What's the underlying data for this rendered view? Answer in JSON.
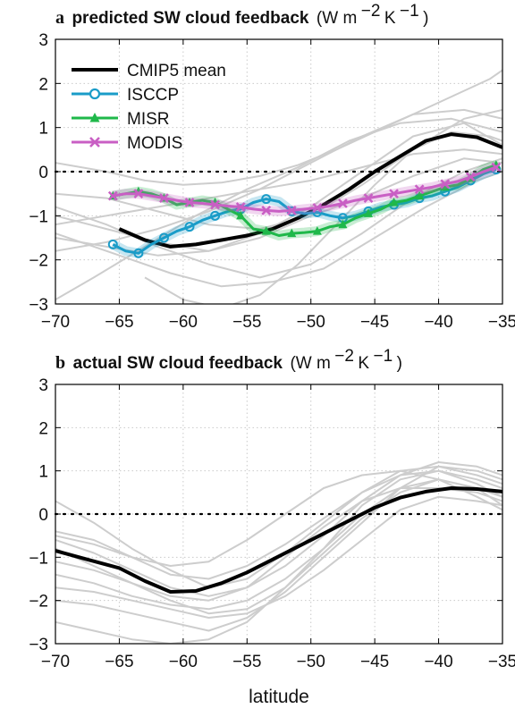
{
  "figure": {
    "xlabel": "latitude"
  },
  "chart_data": [
    {
      "type": "line",
      "panel_letter": "a",
      "title_main": "predicted SW cloud feedback",
      "title_units": {
        "base": "(W m",
        "exp1": "−2",
        "mid": " K",
        "exp2": "−1",
        "end": ")"
      },
      "xlim": [
        -70,
        -35
      ],
      "ylim": [
        -3,
        3
      ],
      "x_ticks": [
        -70,
        -65,
        -60,
        -55,
        -50,
        -45,
        -40,
        -35
      ],
      "y_ticks": [
        -3,
        -2,
        -1,
        0,
        1,
        2,
        3
      ],
      "grid": true,
      "zero_line": "dotted",
      "legend": {
        "position": "top-left"
      },
      "colors": {
        "cmip5": "#000000",
        "isccp": "#1a9cc8",
        "misr": "#1fb84a",
        "modis": "#c95fc4",
        "models": "#c8c8c8"
      },
      "series": [
        {
          "name": "CMIP5 mean",
          "color": "#000000",
          "marker": "none",
          "x": [
            -65,
            -63,
            -61,
            -59,
            -57,
            -55,
            -53,
            -51,
            -49,
            -47,
            -45,
            -43,
            -41,
            -39,
            -37,
            -35
          ],
          "y": [
            -1.3,
            -1.55,
            -1.7,
            -1.65,
            -1.55,
            -1.45,
            -1.3,
            -1.05,
            -0.75,
            -0.4,
            0.0,
            0.35,
            0.7,
            0.85,
            0.78,
            0.55
          ]
        },
        {
          "name": "ISCCP",
          "color": "#1a9cc8",
          "marker": "circle",
          "x": [
            -65.5,
            -64.5,
            -63.5,
            -62.5,
            -61.5,
            -60.5,
            -59.5,
            -58.5,
            -57.5,
            -56.5,
            -55.5,
            -54.5,
            -53.5,
            -52.5,
            -51.5,
            -50.5,
            -49.5,
            -48.5,
            -47.5,
            -46.5,
            -45.5,
            -44.5,
            -43.5,
            -42.5,
            -41.5,
            -40.5,
            -39.5,
            -38.5,
            -37.5,
            -36.5,
            -35.5
          ],
          "y": [
            -1.65,
            -1.8,
            -1.85,
            -1.65,
            -1.5,
            -1.35,
            -1.25,
            -1.1,
            -1.0,
            -0.9,
            -0.85,
            -0.7,
            -0.62,
            -0.68,
            -0.9,
            -0.95,
            -0.92,
            -1.0,
            -1.05,
            -1.0,
            -0.9,
            -0.8,
            -0.75,
            -0.7,
            -0.6,
            -0.55,
            -0.45,
            -0.35,
            -0.2,
            -0.05,
            0.05
          ]
        },
        {
          "name": "MISR",
          "color": "#1fb84a",
          "marker": "triangle",
          "x": [
            -65.5,
            -64.5,
            -63.5,
            -62.5,
            -61.5,
            -60.5,
            -59.5,
            -58.5,
            -57.5,
            -56.5,
            -55.5,
            -54.5,
            -53.5,
            -52.5,
            -51.5,
            -50.5,
            -49.5,
            -48.5,
            -47.5,
            -46.5,
            -45.5,
            -44.5,
            -43.5,
            -42.5,
            -41.5,
            -40.5,
            -39.5,
            -38.5,
            -37.5,
            -36.5,
            -35.5
          ],
          "y": [
            -0.55,
            -0.5,
            -0.45,
            -0.5,
            -0.6,
            -0.75,
            -0.7,
            -0.65,
            -0.7,
            -0.85,
            -1.0,
            -1.3,
            -1.35,
            -1.45,
            -1.4,
            -1.38,
            -1.35,
            -1.25,
            -1.2,
            -1.05,
            -0.95,
            -0.85,
            -0.7,
            -0.65,
            -0.55,
            -0.45,
            -0.35,
            -0.3,
            -0.15,
            0.05,
            0.15
          ]
        },
        {
          "name": "MODIS",
          "color": "#c95fc4",
          "marker": "x",
          "x": [
            -65.5,
            -64.5,
            -63.5,
            -62.5,
            -61.5,
            -60.5,
            -59.5,
            -58.5,
            -57.5,
            -56.5,
            -55.5,
            -54.5,
            -53.5,
            -52.5,
            -51.5,
            -50.5,
            -49.5,
            -48.5,
            -47.5,
            -46.5,
            -45.5,
            -44.5,
            -43.5,
            -42.5,
            -41.5,
            -40.5,
            -39.5,
            -38.5,
            -37.5,
            -36.5,
            -35.5
          ],
          "y": [
            -0.55,
            -0.5,
            -0.5,
            -0.55,
            -0.6,
            -0.65,
            -0.7,
            -0.72,
            -0.75,
            -0.78,
            -0.8,
            -0.85,
            -0.88,
            -0.9,
            -0.88,
            -0.85,
            -0.82,
            -0.78,
            -0.72,
            -0.65,
            -0.6,
            -0.55,
            -0.5,
            -0.45,
            -0.4,
            -0.35,
            -0.28,
            -0.22,
            -0.12,
            0.0,
            0.1
          ]
        }
      ],
      "model_lines": [
        {
          "x": [
            -70,
            -66,
            -63,
            -60,
            -57,
            -54,
            -51,
            -48,
            -45,
            -42,
            -39,
            -36,
            -35
          ],
          "y": [
            0.2,
            0.0,
            -0.2,
            -0.3,
            -0.25,
            -0.1,
            0.15,
            0.5,
            0.9,
            1.3,
            1.7,
            2.1,
            2.3
          ]
        },
        {
          "x": [
            -70,
            -66,
            -62,
            -58,
            -54,
            -50,
            -46,
            -42,
            -38,
            -35
          ],
          "y": [
            -1.0,
            -1.3,
            -1.6,
            -1.8,
            -1.5,
            -1.0,
            -0.3,
            0.5,
            1.2,
            1.4
          ]
        },
        {
          "x": [
            -70,
            -66,
            -62,
            -58,
            -54,
            -50,
            -46,
            -42,
            -38,
            -35
          ],
          "y": [
            -1.8,
            -1.6,
            -1.3,
            -0.9,
            -0.4,
            0.2,
            0.8,
            1.3,
            1.4,
            1.2
          ]
        },
        {
          "x": [
            -70,
            -67,
            -63,
            -59,
            -55,
            -51,
            -47,
            -43,
            -39,
            -35
          ],
          "y": [
            -2.9,
            -2.4,
            -1.7,
            -1.0,
            -0.4,
            0.1,
            0.7,
            1.1,
            1.2,
            0.9
          ]
        },
        {
          "x": [
            -70,
            -66,
            -62,
            -58,
            -54,
            -50,
            -46,
            -42,
            -38,
            -35
          ],
          "y": [
            -0.8,
            -1.2,
            -1.7,
            -2.1,
            -2.4,
            -2.1,
            -1.4,
            -0.6,
            0.0,
            0.3
          ]
        },
        {
          "x": [
            -70,
            -65,
            -61,
            -57,
            -53,
            -49,
            -45,
            -41,
            -37,
            -35
          ],
          "y": [
            -1.4,
            -1.9,
            -2.3,
            -2.6,
            -2.5,
            -2.2,
            -1.5,
            -0.8,
            -0.2,
            0.0
          ]
        },
        {
          "x": [
            -70,
            -66,
            -62,
            -58,
            -54,
            -50,
            -46,
            -42,
            -38,
            -35
          ],
          "y": [
            -1.2,
            -1.0,
            -0.8,
            -0.6,
            -0.4,
            -0.2,
            0.1,
            0.4,
            0.5,
            0.4
          ]
        },
        {
          "x": [
            -70,
            -66,
            -62,
            -58,
            -54,
            -50,
            -46,
            -42,
            -38,
            -35
          ],
          "y": [
            -0.5,
            -0.6,
            -0.9,
            -1.2,
            -1.3,
            -1.0,
            -0.6,
            -0.1,
            0.3,
            0.2
          ]
        },
        {
          "x": [
            -63,
            -60,
            -57,
            -54,
            -51,
            -48,
            -45,
            -42,
            -39,
            -36,
            -35
          ],
          "y": [
            -2.4,
            -2.9,
            -3.1,
            -2.8,
            -2.1,
            -1.2,
            -0.3,
            0.5,
            0.9,
            0.8,
            0.7
          ]
        },
        {
          "x": [
            -70,
            -66,
            -62,
            -58,
            -54,
            -50,
            -46,
            -42,
            -38,
            -35
          ],
          "y": [
            -1.5,
            -1.7,
            -1.9,
            -1.8,
            -1.4,
            -0.8,
            0.0,
            0.8,
            1.1,
            0.6
          ]
        }
      ]
    },
    {
      "type": "line",
      "panel_letter": "b",
      "title_main": "actual SW cloud feedback",
      "title_units": {
        "base": "(W m",
        "exp1": "−2",
        "mid": " K",
        "exp2": "−1",
        "end": ")"
      },
      "xlim": [
        -70,
        -35
      ],
      "ylim": [
        -3,
        3
      ],
      "x_ticks": [
        -70,
        -65,
        -60,
        -55,
        -50,
        -45,
        -40,
        -35
      ],
      "y_ticks": [
        -3,
        -2,
        -1,
        0,
        1,
        2,
        3
      ],
      "grid": true,
      "zero_line": "dotted",
      "colors": {
        "mean": "#000000",
        "models": "#c8c8c8"
      },
      "series": [
        {
          "name": "CMIP5 mean",
          "color": "#000000",
          "marker": "none",
          "x": [
            -70,
            -67.5,
            -65,
            -63,
            -61,
            -59,
            -57,
            -55,
            -53,
            -51,
            -49,
            -47,
            -45,
            -43,
            -41,
            -39,
            -37,
            -35
          ],
          "y": [
            -0.85,
            -1.05,
            -1.25,
            -1.55,
            -1.8,
            -1.78,
            -1.6,
            -1.35,
            -1.05,
            -0.75,
            -0.45,
            -0.15,
            0.15,
            0.38,
            0.52,
            0.6,
            0.58,
            0.52
          ]
        }
      ],
      "model_lines": [
        {
          "x": [
            -70,
            -67,
            -64,
            -61,
            -58,
            -55,
            -52,
            -49,
            -46,
            -43,
            -40,
            -37,
            -35
          ],
          "y": [
            -0.4,
            -0.6,
            -1.0,
            -1.4,
            -1.5,
            -1.2,
            -0.7,
            -0.1,
            0.5,
            0.9,
            1.0,
            0.8,
            0.6
          ]
        },
        {
          "x": [
            -70,
            -67,
            -64,
            -61,
            -58,
            -55,
            -52,
            -49,
            -46,
            -43,
            -40,
            -37,
            -35
          ],
          "y": [
            -2.0,
            -2.1,
            -2.3,
            -2.5,
            -2.7,
            -2.4,
            -1.8,
            -1.0,
            -0.2,
            0.6,
            1.1,
            1.0,
            0.8
          ]
        },
        {
          "x": [
            -70,
            -67,
            -64,
            -61,
            -58,
            -55,
            -52,
            -49,
            -46,
            -43,
            -40,
            -37,
            -35
          ],
          "y": [
            0.3,
            -0.2,
            -0.8,
            -1.3,
            -1.7,
            -1.5,
            -0.9,
            -0.2,
            0.5,
            1.0,
            1.1,
            0.9,
            0.7
          ]
        },
        {
          "x": [
            -70,
            -67,
            -64,
            -61,
            -58,
            -55,
            -52,
            -49,
            -46,
            -43,
            -40,
            -37,
            -35
          ],
          "y": [
            -1.4,
            -1.6,
            -1.9,
            -2.1,
            -2.2,
            -2.0,
            -1.5,
            -0.8,
            0.0,
            0.6,
            0.8,
            0.6,
            0.4
          ]
        },
        {
          "x": [
            -70,
            -67,
            -64,
            -61,
            -58,
            -55,
            -52,
            -49,
            -46,
            -43,
            -40,
            -37,
            -35
          ],
          "y": [
            -0.6,
            -0.9,
            -1.3,
            -1.7,
            -1.9,
            -1.7,
            -1.2,
            -0.5,
            0.3,
            0.9,
            1.2,
            1.1,
            0.9
          ]
        },
        {
          "x": [
            -70,
            -67,
            -64,
            -61,
            -58,
            -55,
            -52,
            -49,
            -46,
            -43,
            -40,
            -37,
            -35
          ],
          "y": [
            -2.5,
            -2.7,
            -2.9,
            -3.0,
            -2.9,
            -2.5,
            -1.7,
            -0.8,
            0.2,
            0.8,
            1.0,
            0.7,
            0.4
          ]
        },
        {
          "x": [
            -70,
            -67,
            -64,
            -61,
            -58,
            -55,
            -52,
            -49,
            -46,
            -43,
            -40,
            -37,
            -35
          ],
          "y": [
            -0.8,
            -1.2,
            -1.6,
            -1.9,
            -2.0,
            -1.7,
            -1.0,
            -0.3,
            0.3,
            0.6,
            0.6,
            0.5,
            0.3
          ]
        },
        {
          "x": [
            -70,
            -67,
            -64,
            -61,
            -58,
            -55,
            -52,
            -49,
            -46,
            -43,
            -40,
            -37,
            -35
          ],
          "y": [
            -1.1,
            -1.3,
            -1.6,
            -2.0,
            -2.3,
            -2.2,
            -1.7,
            -0.9,
            -0.1,
            0.5,
            0.8,
            0.6,
            0.2
          ]
        },
        {
          "x": [
            -70,
            -67,
            -64,
            -61,
            -58,
            -55,
            -52,
            -49,
            -46,
            -43,
            -40,
            -37,
            -35
          ],
          "y": [
            -0.5,
            -0.7,
            -1.0,
            -1.2,
            -1.1,
            -0.6,
            0.0,
            0.6,
            0.9,
            1.0,
            0.8,
            0.4,
            0.1
          ]
        },
        {
          "x": [
            -70,
            -67,
            -64,
            -61,
            -58,
            -55,
            -52,
            -49,
            -46,
            -43,
            -40,
            -37,
            -35
          ],
          "y": [
            -1.7,
            -1.8,
            -2.0,
            -2.2,
            -2.4,
            -2.3,
            -1.9,
            -1.3,
            -0.6,
            0.1,
            0.4,
            0.3,
            0.2
          ]
        }
      ]
    }
  ]
}
